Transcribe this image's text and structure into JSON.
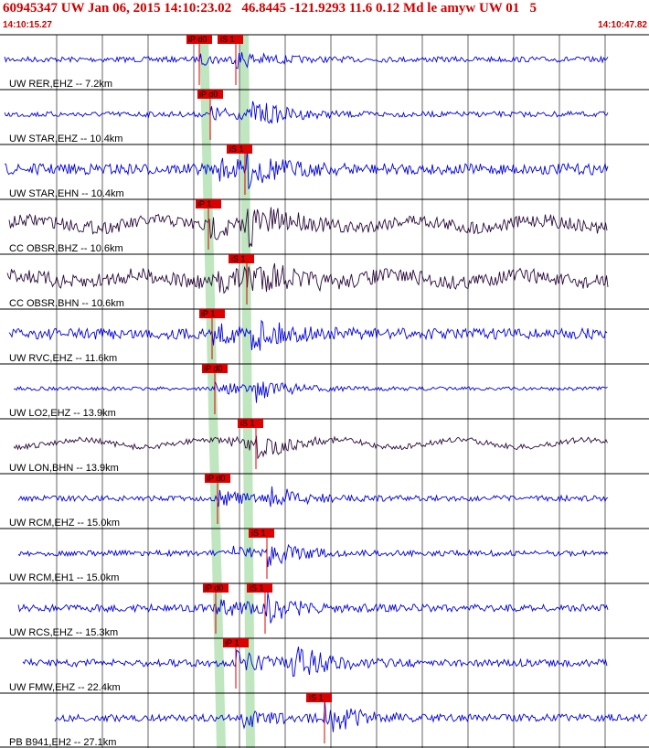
{
  "header": {
    "title": "60945347 UW Jan 06, 2015 14:10:23.02   46.8445 -121.9293 11.6 0.12 Md le amyw UW 01   5",
    "start_time": "14:10:15.27",
    "end_time": "14:10:47.82"
  },
  "colors": {
    "header": "#d00000",
    "trace_blue": "#0000dd",
    "trace_dark": "#2a0a3a",
    "pick_box": "#dd0000",
    "band": "#bfe6bf",
    "fit": "#ff0000"
  },
  "channels": [
    {
      "label": "UW RER,EHZ -- 7.2km",
      "color": "blue",
      "p_pick": "iP d0",
      "s_pick": "iS 1"
    },
    {
      "label": "UW STAR,EHZ -- 10.4km",
      "color": "blue",
      "p_pick": "iP d0",
      "s_pick": ""
    },
    {
      "label": "UW STAR,EHN -- 10.4km",
      "color": "blue",
      "p_pick": "",
      "s_pick": "iS 1"
    },
    {
      "label": "CC OBSR,BHZ -- 10.6km",
      "color": "dark",
      "p_pick": "iP 1",
      "s_pick": ""
    },
    {
      "label": "CC OBSR,BHN -- 10.6km",
      "color": "dark",
      "p_pick": "",
      "s_pick": "iS 1"
    },
    {
      "label": "UW RVC,EHZ -- 11.6km",
      "color": "blue",
      "p_pick": "iP 1",
      "s_pick": ""
    },
    {
      "label": "UW LO2,EHZ -- 13.9km",
      "color": "blue",
      "p_pick": "iP d0",
      "s_pick": ""
    },
    {
      "label": "UW LON,BHN -- 13.9km",
      "color": "dark",
      "p_pick": "",
      "s_pick": "iS 1"
    },
    {
      "label": "UW RCM,EHZ -- 15.0km",
      "color": "blue",
      "p_pick": "iP d0",
      "s_pick": ""
    },
    {
      "label": "UW RCM,EH1 -- 15.0km",
      "color": "blue",
      "p_pick": "",
      "s_pick": "iS 1"
    },
    {
      "label": "UW RCS,EHZ -- 15.3km",
      "color": "blue",
      "p_pick": "iP d0",
      "s_pick": "iS 1"
    },
    {
      "label": "UW FMW,EHZ -- 22.4km",
      "color": "blue",
      "p_pick": "iP 1",
      "s_pick": ""
    },
    {
      "label": "PB B941,EH2 -- 27.1km",
      "color": "blue",
      "p_pick": "",
      "s_pick": "iS 1"
    }
  ]
}
